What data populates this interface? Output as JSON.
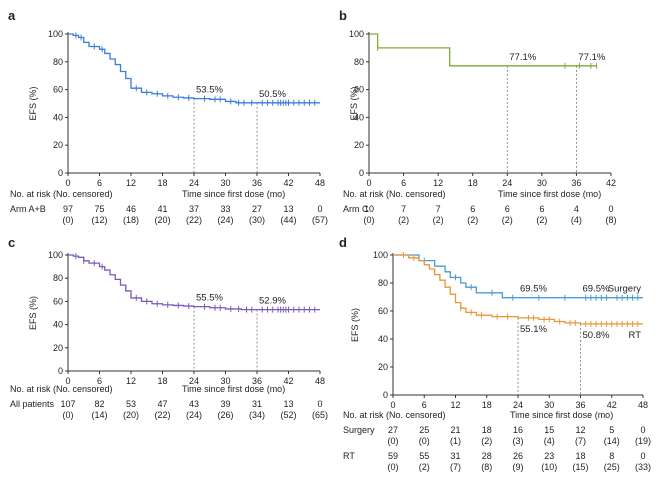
{
  "figure": {
    "panels": [
      {
        "letter": "a",
        "ylabel": "EFS (%)",
        "xlabel": "Time since first dose (mo)",
        "risk_title": "No. at risk (No. censored)",
        "risk_rows": [
          {
            "label": "Arm A+B",
            "at_risk": [
              "97",
              "75",
              "46",
              "41",
              "37",
              "33",
              "27",
              "13",
              "0"
            ],
            "censored": [
              "(0)",
              "(12)",
              "(18)",
              "(20)",
              "(22)",
              "(24)",
              "(30)",
              "(44)",
              "(57)"
            ]
          }
        ]
      },
      {
        "letter": "b",
        "ylabel": "EFS (%)",
        "xlabel": "Time since first dose (mo)",
        "risk_title": "No. at risk (No. censored)",
        "risk_rows": [
          {
            "label": "Arm C",
            "at_risk": [
              "10",
              "7",
              "7",
              "6",
              "6",
              "6",
              "4",
              "0"
            ],
            "censored": [
              "(0)",
              "(2)",
              "(2)",
              "(2)",
              "(2)",
              "(2)",
              "(4)",
              "(8)"
            ]
          }
        ]
      },
      {
        "letter": "c",
        "ylabel": "EFS (%)",
        "xlabel": "Time since first dose (mo)",
        "risk_title": "No. at risk (No. censored)",
        "risk_rows": [
          {
            "label": "All patients",
            "at_risk": [
              "107",
              "82",
              "53",
              "47",
              "43",
              "39",
              "31",
              "13",
              "0"
            ],
            "censored": [
              "(0)",
              "(14)",
              "(20)",
              "(22)",
              "(24)",
              "(26)",
              "(34)",
              "(52)",
              "(65)"
            ]
          }
        ]
      },
      {
        "letter": "d",
        "ylabel": "EFS (%)",
        "xlabel": "Time since first dose (mo)",
        "risk_title": "No. at risk (No. censored)",
        "risk_rows": [
          {
            "label": "Surgery",
            "at_risk": [
              "27",
              "25",
              "21",
              "18",
              "16",
              "15",
              "12",
              "5",
              "0"
            ],
            "censored": [
              "(0)",
              "(0)",
              "(1)",
              "(2)",
              "(3)",
              "(4)",
              "(7)",
              "(14)",
              "(19)"
            ]
          },
          {
            "label": "RT",
            "at_risk": [
              "59",
              "55",
              "31",
              "28",
              "26",
              "23",
              "18",
              "8",
              "0"
            ],
            "censored": [
              "(0)",
              "(2)",
              "(7)",
              "(8)",
              "(9)",
              "(10)",
              "(15)",
              "(25)",
              "(33)"
            ]
          }
        ]
      }
    ]
  },
  "chart_data": [
    {
      "type": "line",
      "panel": "a",
      "xlabel": "Time since first dose (mo)",
      "ylabel": "EFS (%)",
      "xlim": [
        0,
        48
      ],
      "ylim": [
        0,
        100
      ],
      "xticks": [
        0,
        6,
        12,
        18,
        24,
        30,
        36,
        42,
        48
      ],
      "yticks": [
        0,
        20,
        40,
        60,
        80,
        100
      ],
      "series": [
        {
          "color": "#3b7dd8",
          "step": true,
          "points": [
            [
              0,
              100
            ],
            [
              1,
              99
            ],
            [
              2,
              97.5
            ],
            [
              3,
              94
            ],
            [
              4,
              91
            ],
            [
              6,
              89
            ],
            [
              7,
              86
            ],
            [
              8,
              82
            ],
            [
              9,
              78
            ],
            [
              10,
              73
            ],
            [
              11,
              68
            ],
            [
              12,
              61
            ],
            [
              14,
              58
            ],
            [
              16,
              57
            ],
            [
              18,
              55.5
            ],
            [
              20,
              54.5
            ],
            [
              22,
              54
            ],
            [
              24,
              53.5
            ],
            [
              27,
              53
            ],
            [
              30,
              51.5
            ],
            [
              32,
              50.5
            ],
            [
              36,
              50.5
            ],
            [
              48,
              50.5
            ]
          ],
          "censor_times": [
            1.5,
            2.5,
            5,
            6.5,
            13,
            15,
            17,
            19,
            21,
            23,
            26,
            28,
            29,
            31,
            32.5,
            33.5,
            35,
            37,
            38,
            39,
            40,
            40.5,
            41,
            41.5,
            42,
            43,
            44,
            45,
            46,
            47
          ]
        }
      ],
      "reference_lines": [
        {
          "x": 24,
          "y": 53.5
        },
        {
          "x": 36,
          "y": 50.5
        }
      ],
      "annotations": [
        {
          "text": "53.5%",
          "x": 24,
          "y": 53.5
        },
        {
          "text": "50.5%",
          "x": 36,
          "y": 50.5
        }
      ]
    },
    {
      "type": "line",
      "panel": "b",
      "xlabel": "Time since first dose (mo)",
      "ylabel": "EFS (%)",
      "xlim": [
        0,
        42
      ],
      "ylim": [
        0,
        100
      ],
      "xticks": [
        0,
        6,
        12,
        18,
        24,
        30,
        36,
        42
      ],
      "yticks": [
        0,
        20,
        40,
        60,
        80,
        100
      ],
      "series": [
        {
          "color": "#7faa3a",
          "step": true,
          "points": [
            [
              0,
              100
            ],
            [
              1.5,
              90
            ],
            [
              14,
              77.1
            ],
            [
              39.5,
              77.1
            ]
          ],
          "censor_times": [
            1.5,
            34,
            36.5,
            38.5,
            39.5
          ]
        }
      ],
      "reference_lines": [
        {
          "x": 24,
          "y": 77.1
        },
        {
          "x": 36,
          "y": 77.1
        }
      ],
      "annotations": [
        {
          "text": "77.1%",
          "x": 24,
          "y": 77.1
        },
        {
          "text": "77.1%",
          "x": 36,
          "y": 77.1
        }
      ]
    },
    {
      "type": "line",
      "panel": "c",
      "xlabel": "Time since first dose (mo)",
      "ylabel": "EFS (%)",
      "xlim": [
        0,
        48
      ],
      "ylim": [
        0,
        100
      ],
      "xticks": [
        0,
        6,
        12,
        18,
        24,
        30,
        36,
        42,
        48
      ],
      "yticks": [
        0,
        20,
        40,
        60,
        80,
        100
      ],
      "series": [
        {
          "color": "#7a5ab8",
          "step": true,
          "points": [
            [
              0,
              100
            ],
            [
              1,
              99
            ],
            [
              2,
              98
            ],
            [
              3,
              95
            ],
            [
              4,
              93
            ],
            [
              6,
              90
            ],
            [
              7,
              87
            ],
            [
              8,
              83
            ],
            [
              9,
              79
            ],
            [
              10,
              74
            ],
            [
              11,
              69
            ],
            [
              12,
              63
            ],
            [
              14,
              60
            ],
            [
              16,
              58
            ],
            [
              18,
              57
            ],
            [
              20,
              56.5
            ],
            [
              22,
              56
            ],
            [
              24,
              55.5
            ],
            [
              27,
              54.5
            ],
            [
              30,
              53.5
            ],
            [
              33,
              52.9
            ],
            [
              36,
              52.9
            ],
            [
              48,
              52.9
            ]
          ],
          "censor_times": [
            1.5,
            3,
            5,
            6.5,
            13,
            15,
            17,
            19,
            21,
            23,
            26,
            28,
            29,
            31,
            32.5,
            34,
            35,
            37,
            38,
            39,
            40,
            40.5,
            41,
            41.5,
            42,
            43,
            44,
            45,
            46,
            47
          ]
        }
      ],
      "reference_lines": [
        {
          "x": 24,
          "y": 55.5
        },
        {
          "x": 36,
          "y": 52.9
        }
      ],
      "annotations": [
        {
          "text": "55.5%",
          "x": 24,
          "y": 55.5
        },
        {
          "text": "52.9%",
          "x": 36,
          "y": 52.9
        }
      ]
    },
    {
      "type": "line",
      "panel": "d",
      "xlabel": "Time since first dose (mo)",
      "ylabel": "EFS (%)",
      "xlim": [
        0,
        48
      ],
      "ylim": [
        0,
        100
      ],
      "xticks": [
        0,
        6,
        12,
        18,
        24,
        30,
        36,
        42,
        48
      ],
      "yticks": [
        0,
        20,
        40,
        60,
        80,
        100
      ],
      "series": [
        {
          "name": "Surgery",
          "color": "#4a9bd6",
          "step": true,
          "points": [
            [
              0,
              100
            ],
            [
              5,
              96
            ],
            [
              8,
              92
            ],
            [
              10,
              88
            ],
            [
              11,
              84
            ],
            [
              13,
              80
            ],
            [
              14,
              77
            ],
            [
              16,
              73
            ],
            [
              21,
              69.5
            ],
            [
              36,
              69.5
            ],
            [
              48,
              69.5
            ]
          ],
          "censor_times": [
            6,
            12,
            15,
            19,
            23,
            28,
            33,
            37,
            38,
            39,
            40,
            41,
            43,
            44,
            45,
            46,
            47
          ]
        },
        {
          "name": "RT",
          "color": "#e8963a",
          "step": true,
          "points": [
            [
              0,
              100
            ],
            [
              3,
              98
            ],
            [
              5,
              96
            ],
            [
              6,
              93
            ],
            [
              7,
              90
            ],
            [
              8,
              86
            ],
            [
              9,
              82
            ],
            [
              10,
              77
            ],
            [
              11,
              72
            ],
            [
              12,
              66
            ],
            [
              13,
              62
            ],
            [
              14,
              59
            ],
            [
              16,
              57
            ],
            [
              19,
              56
            ],
            [
              24,
              55.1
            ],
            [
              28,
              54
            ],
            [
              31,
              52.5
            ],
            [
              33,
              51.5
            ],
            [
              36,
              50.8
            ],
            [
              48,
              50.8
            ]
          ],
          "censor_times": [
            2,
            4,
            13,
            15,
            17,
            20,
            22,
            26,
            27,
            29,
            30,
            32,
            34,
            35,
            37,
            38,
            39,
            40,
            41,
            42,
            43,
            44,
            45,
            46,
            47
          ]
        }
      ],
      "reference_lines": [
        {
          "x": 24,
          "y": 55.1
        },
        {
          "x": 36,
          "y": 50.8
        }
      ],
      "annotations": [
        {
          "text": "69.5%",
          "x": 24,
          "y": 69.5,
          "pos": "above"
        },
        {
          "text": "69.5%",
          "x": 36,
          "y": 69.5,
          "pos": "above"
        },
        {
          "text": "55.1%",
          "x": 24,
          "y": 55.1,
          "pos": "below"
        },
        {
          "text": "50.8%",
          "x": 36,
          "y": 50.8,
          "pos": "below"
        }
      ]
    }
  ]
}
